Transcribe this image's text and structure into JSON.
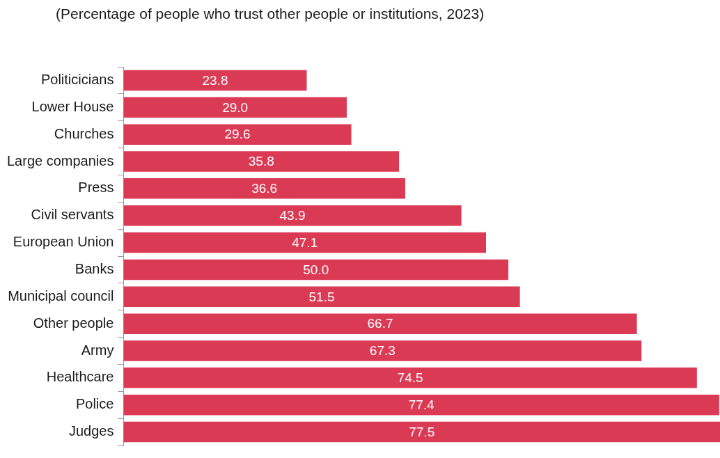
{
  "chart_data": {
    "type": "bar",
    "orientation": "horizontal",
    "title": "(Percentage of people who trust other people or institutions, 2023)",
    "categories": [
      "Politicicians",
      "Lower House",
      "Churches",
      "Large companies",
      "Press",
      "Civil servants",
      "European Union",
      "Banks",
      "Municipal council",
      "Other people",
      "Army",
      "Healthcare",
      "Police",
      "Judges"
    ],
    "values": [
      23.8,
      29.0,
      29.6,
      35.8,
      36.6,
      43.9,
      47.1,
      50.0,
      51.5,
      66.7,
      67.3,
      74.5,
      77.4,
      77.5
    ],
    "value_labels": [
      "23.8",
      "29.0",
      "29.6",
      "35.8",
      "36.6",
      "43.9",
      "47.1",
      "50.0",
      "51.5",
      "66.7",
      "67.3",
      "74.5",
      "77.4",
      "77.5"
    ],
    "color": "#db3a55",
    "relative": false,
    "legend": false
  }
}
